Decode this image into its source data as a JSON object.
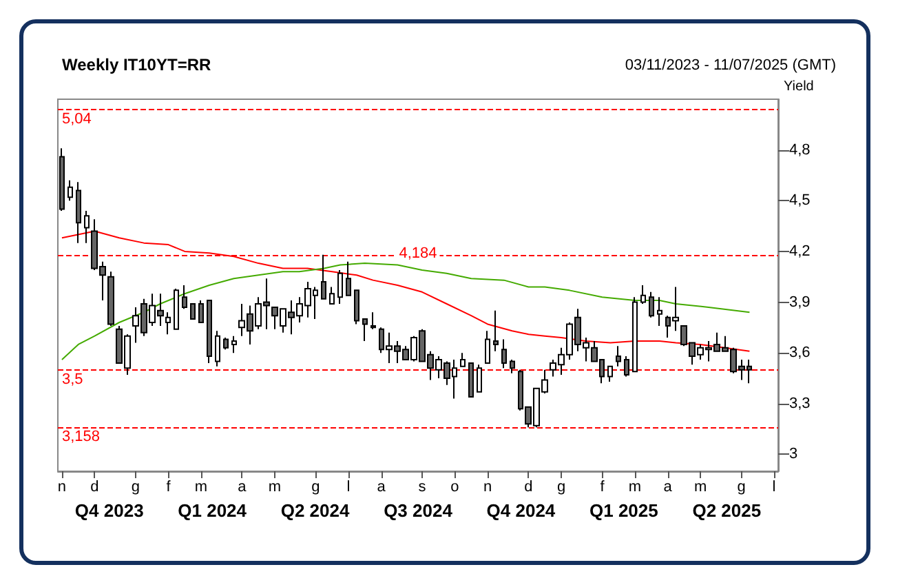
{
  "chart_data": {
    "type": "candlestick",
    "title": "Weekly IT10YT=RR",
    "subtitle": "03/11/2023 - 11/07/2025 (GMT)",
    "ylabel": "Yield",
    "colors": [
      "#666666",
      "#ffffff",
      "#666666",
      "#ffffff",
      "#666666",
      "#666666",
      "#666666",
      "#666666",
      "#ffffff",
      "#ffffff",
      "#666666",
      "#ffffff",
      "#666666",
      "#ffffff",
      "#ffffff",
      "#666666",
      "#666666",
      "#666666",
      "#666666",
      "#ffffff",
      "#666666",
      "#ffffff",
      "#ffffff",
      "#666666",
      "#ffffff",
      "#666666",
      "#666666",
      "#ffffff",
      "#666666",
      "#ffffff",
      "#ffffff",
      "#ffffff",
      "#666666",
      "#ffffff",
      "#ffffff",
      "#666666",
      "#666666",
      "#666666",
      "#666666",
      "#666666",
      "#ffffff",
      "#666666",
      "#666666",
      "#ffffff",
      "#666666",
      "#666666",
      "#ffffff",
      "#666666",
      "#ffffff",
      "#ffffff",
      "#666666",
      "#ffffff",
      "#ffffff",
      "#666666",
      "#666666",
      "#666666",
      "#666666",
      "#666666",
      "#ffffff",
      "#ffffff",
      "#ffffff",
      "#ffffff",
      "#ffffff",
      "#666666",
      "#ffffff",
      "#666666",
      "#666666",
      "#ffffff",
      "#666666",
      "#666666",
      "#ffffff",
      "#ffffff",
      "#666666",
      "#ffffff",
      "#666666",
      "#ffffff",
      "#666666",
      "#666666",
      "#ffffff",
      "#ffffff",
      "#666666",
      "#666666",
      "#666666",
      "#666666",
      "#666666",
      null,
      null,
      null
    ],
    "categories": [
      "n",
      null,
      null,
      null,
      "d",
      null,
      null,
      null,
      null,
      "g",
      null,
      null,
      null,
      "f",
      null,
      null,
      null,
      "m",
      null,
      null,
      null,
      null,
      "a",
      null,
      null,
      null,
      "m",
      null,
      null,
      null,
      null,
      "g",
      null,
      null,
      null,
      "l",
      null,
      null,
      null,
      "a",
      null,
      null,
      null,
      null,
      "s",
      null,
      null,
      null,
      "o",
      null,
      null,
      null,
      "n",
      null,
      null,
      null,
      null,
      "d",
      null,
      null,
      null,
      "g",
      null,
      null,
      null,
      null,
      "f",
      null,
      null,
      null,
      "m",
      null,
      null,
      null,
      "a",
      null,
      null,
      null,
      "m",
      null,
      null,
      null,
      null,
      "g",
      null,
      null,
      null,
      "l"
    ],
    "ohlc": [
      [
        4.76,
        4.81,
        4.44,
        4.45
      ],
      [
        4.52,
        4.62,
        4.5,
        4.58
      ],
      [
        4.56,
        4.61,
        4.25,
        4.37
      ],
      [
        4.34,
        4.44,
        4.25,
        4.41
      ],
      [
        4.32,
        4.39,
        4.09,
        4.1
      ],
      [
        4.11,
        4.14,
        3.91,
        4.06
      ],
      [
        4.05,
        4.08,
        3.76,
        3.77
      ],
      [
        3.74,
        3.76,
        3.54,
        3.54
      ],
      [
        3.51,
        3.71,
        3.47,
        3.7
      ],
      [
        3.76,
        3.87,
        3.66,
        3.82
      ],
      [
        3.89,
        3.92,
        3.7,
        3.72
      ],
      [
        3.78,
        3.95,
        3.76,
        3.88
      ],
      [
        3.85,
        3.95,
        3.76,
        3.82
      ],
      [
        3.78,
        3.84,
        3.71,
        3.81
      ],
      [
        3.74,
        3.98,
        3.74,
        3.97
      ],
      [
        3.93,
        4.0,
        3.86,
        3.87
      ],
      [
        3.89,
        3.89,
        3.8,
        3.8
      ],
      [
        3.89,
        3.91,
        3.78,
        3.78
      ],
      [
        3.91,
        3.91,
        3.54,
        3.58
      ],
      [
        3.55,
        3.73,
        3.52,
        3.7
      ],
      [
        3.68,
        3.69,
        3.62,
        3.63
      ],
      [
        3.65,
        3.7,
        3.6,
        3.67
      ],
      [
        3.75,
        3.89,
        3.7,
        3.79
      ],
      [
        3.83,
        3.88,
        3.65,
        3.73
      ],
      [
        3.76,
        3.93,
        3.74,
        3.89
      ],
      [
        3.9,
        4.04,
        3.74,
        3.88
      ],
      [
        3.87,
        3.87,
        3.74,
        3.82
      ],
      [
        3.76,
        3.86,
        3.72,
        3.86
      ],
      [
        3.84,
        3.91,
        3.71,
        3.81
      ],
      [
        3.82,
        3.93,
        3.78,
        3.89
      ],
      [
        3.88,
        4.02,
        3.81,
        3.98
      ],
      [
        3.94,
        3.99,
        3.8,
        3.97
      ],
      [
        4.02,
        4.18,
        3.92,
        3.92
      ],
      [
        3.89,
        3.99,
        3.89,
        3.95
      ],
      [
        3.93,
        4.09,
        3.89,
        4.07
      ],
      [
        4.04,
        4.14,
        3.94,
        3.94
      ],
      [
        3.97,
        3.97,
        3.77,
        3.79
      ],
      [
        3.8,
        3.8,
        3.67,
        3.77
      ],
      [
        3.76,
        3.84,
        3.74,
        3.75
      ],
      [
        3.74,
        3.75,
        3.6,
        3.62
      ],
      [
        3.62,
        3.72,
        3.54,
        3.64
      ],
      [
        3.64,
        3.67,
        3.54,
        3.61
      ],
      [
        3.62,
        3.64,
        3.56,
        3.56
      ],
      [
        3.56,
        3.7,
        3.55,
        3.69
      ],
      [
        3.73,
        3.74,
        3.55,
        3.55
      ],
      [
        3.59,
        3.61,
        3.44,
        3.51
      ],
      [
        3.5,
        3.58,
        3.45,
        3.56
      ],
      [
        3.54,
        3.55,
        3.41,
        3.45
      ],
      [
        3.46,
        3.56,
        3.33,
        3.51
      ],
      [
        3.52,
        3.6,
        3.52,
        3.56
      ],
      [
        3.54,
        3.54,
        3.34,
        3.34
      ],
      [
        3.37,
        3.53,
        3.37,
        3.51
      ],
      [
        3.54,
        3.73,
        3.54,
        3.68
      ],
      [
        3.67,
        3.85,
        3.61,
        3.65
      ],
      [
        3.62,
        3.68,
        3.51,
        3.54
      ],
      [
        3.55,
        3.56,
        3.48,
        3.51
      ],
      [
        3.49,
        3.5,
        3.26,
        3.27
      ],
      [
        3.28,
        3.28,
        3.16,
        3.18
      ],
      [
        3.17,
        3.39,
        3.16,
        3.39
      ],
      [
        3.37,
        3.5,
        3.36,
        3.44
      ],
      [
        3.5,
        3.56,
        3.46,
        3.54
      ],
      [
        3.53,
        3.63,
        3.47,
        3.59
      ],
      [
        3.59,
        3.78,
        3.56,
        3.77
      ],
      [
        3.81,
        3.86,
        3.61,
        3.65
      ],
      [
        3.63,
        3.69,
        3.55,
        3.66
      ],
      [
        3.63,
        3.67,
        3.55,
        3.55
      ],
      [
        3.56,
        3.56,
        3.42,
        3.46
      ],
      [
        3.46,
        3.52,
        3.43,
        3.52
      ],
      [
        3.58,
        3.64,
        3.52,
        3.55
      ],
      [
        3.56,
        3.58,
        3.46,
        3.47
      ],
      [
        3.49,
        3.93,
        3.49,
        3.9
      ],
      [
        3.9,
        4.0,
        3.89,
        3.94
      ],
      [
        3.93,
        3.96,
        3.81,
        3.82
      ],
      [
        3.83,
        3.93,
        3.76,
        3.85
      ],
      [
        3.81,
        3.82,
        3.69,
        3.76
      ],
      [
        3.79,
        3.99,
        3.73,
        3.81
      ],
      [
        3.76,
        3.76,
        3.64,
        3.65
      ],
      [
        3.66,
        3.66,
        3.53,
        3.58
      ],
      [
        3.59,
        3.65,
        3.56,
        3.63
      ],
      [
        3.62,
        3.67,
        3.55,
        3.63
      ],
      [
        3.65,
        3.72,
        3.61,
        3.61
      ],
      [
        3.63,
        3.7,
        3.61,
        3.61
      ],
      [
        3.62,
        3.63,
        3.48,
        3.49
      ],
      [
        3.52,
        3.56,
        3.44,
        3.5
      ],
      [
        3.52,
        3.56,
        3.42,
        3.5
      ],
      null,
      null,
      null
    ],
    "series": [
      {
        "type": "line",
        "color": "#ff0000",
        "values": [
          4.28,
          null,
          null,
          null,
          4.32,
          null,
          null,
          4.28,
          null,
          null,
          4.25,
          null,
          null,
          4.24,
          null,
          4.2,
          null,
          null,
          4.19,
          null,
          null,
          4.17,
          null,
          null,
          4.13,
          null,
          null,
          4.1,
          null,
          null,
          4.1,
          null,
          null,
          4.08,
          null,
          null,
          4.06,
          null,
          4.03,
          null,
          null,
          4.0,
          null,
          null,
          3.96,
          null,
          null,
          3.89,
          null,
          null,
          3.82,
          null,
          3.77,
          null,
          null,
          3.73,
          null,
          3.71,
          null,
          3.7,
          null,
          3.69,
          null,
          null,
          3.67,
          null,
          null,
          3.66,
          null,
          null,
          3.67,
          null,
          null,
          3.67,
          null,
          3.66,
          null,
          null,
          3.65,
          null,
          null,
          3.63,
          null,
          null,
          3.61,
          null,
          null,
          null
        ]
      },
      {
        "type": "line",
        "color": "#44aa00",
        "values": [
          3.56,
          null,
          3.65,
          null,
          3.7,
          null,
          null,
          3.78,
          null,
          null,
          3.84,
          null,
          3.89,
          null,
          null,
          3.95,
          null,
          null,
          4.0,
          null,
          null,
          4.04,
          null,
          null,
          4.06,
          null,
          null,
          4.08,
          null,
          4.08,
          null,
          null,
          4.1,
          null,
          4.12,
          null,
          null,
          4.13,
          null,
          null,
          null,
          4.12,
          null,
          null,
          4.09,
          null,
          null,
          4.07,
          null,
          null,
          4.04,
          null,
          null,
          null,
          4.03,
          null,
          null,
          3.99,
          null,
          3.99,
          null,
          null,
          3.97,
          null,
          null,
          null,
          3.93,
          null,
          null,
          null,
          3.91,
          null,
          null,
          3.91,
          null,
          3.89,
          null,
          null,
          null,
          3.87,
          null,
          null,
          null,
          null,
          3.84,
          null,
          null,
          null
        ]
      }
    ],
    "ylim": [
      2.9,
      5.1
    ],
    "yticks": [
      {
        "value": 3,
        "label": "3"
      },
      {
        "value": 3.3,
        "label": "3,3"
      },
      {
        "value": 3.6,
        "label": "3,6"
      },
      {
        "value": 3.9,
        "label": "3,9"
      },
      {
        "value": 4.2,
        "label": "4,2"
      },
      {
        "value": 4.5,
        "label": "4,5"
      },
      {
        "value": 4.8,
        "label": "4,8"
      }
    ],
    "ref_lines": [
      {
        "axis": "y",
        "value": 5.04,
        "label": "5,04",
        "color": "#ff0000",
        "line_style": "dashed"
      },
      {
        "axis": "y",
        "value": 4.184,
        "label": "4,184",
        "color": "#ff0000",
        "line_style": "dashed"
      },
      {
        "axis": "y",
        "value": 3.5,
        "label": "3,5",
        "color": "#ff0000",
        "line_style": "dashed"
      },
      {
        "axis": "y",
        "value": 3.158,
        "label": "3,158",
        "color": "#ff0000",
        "line_style": "dashed"
      }
    ],
    "annotations": [
      "Q4 2023",
      "Q1 2024",
      "Q2 2024",
      "Q3 2024",
      "Q4 2024",
      "Q1 2025",
      "Q2 2025"
    ],
    "grid": false,
    "marker": "none",
    "line_style": "solid"
  }
}
